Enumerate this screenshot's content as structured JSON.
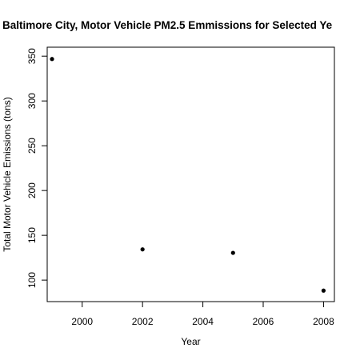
{
  "chart_data": {
    "type": "scatter",
    "title": "Baltimore City, Motor Vehicle PM2.5 Emmissions for Selected Ye",
    "xlabel": "Year",
    "ylabel": "Total Motor Vehicle Emissions (tons)",
    "xlim": [
      1998.84,
      2008.36
    ],
    "ylim": [
      76.0,
      360.0
    ],
    "x_ticks": [
      2000,
      2002,
      2004,
      2006,
      2008
    ],
    "y_ticks": [
      100,
      150,
      200,
      250,
      300,
      350
    ],
    "grid": false,
    "points": [
      {
        "x": 1999,
        "y": 346.8
      },
      {
        "x": 2002,
        "y": 134.3
      },
      {
        "x": 2005,
        "y": 130.4
      },
      {
        "x": 2008,
        "y": 88.3
      }
    ],
    "colors": {
      "points": "#000000",
      "axes": "#000000",
      "background": "#ffffff"
    }
  }
}
